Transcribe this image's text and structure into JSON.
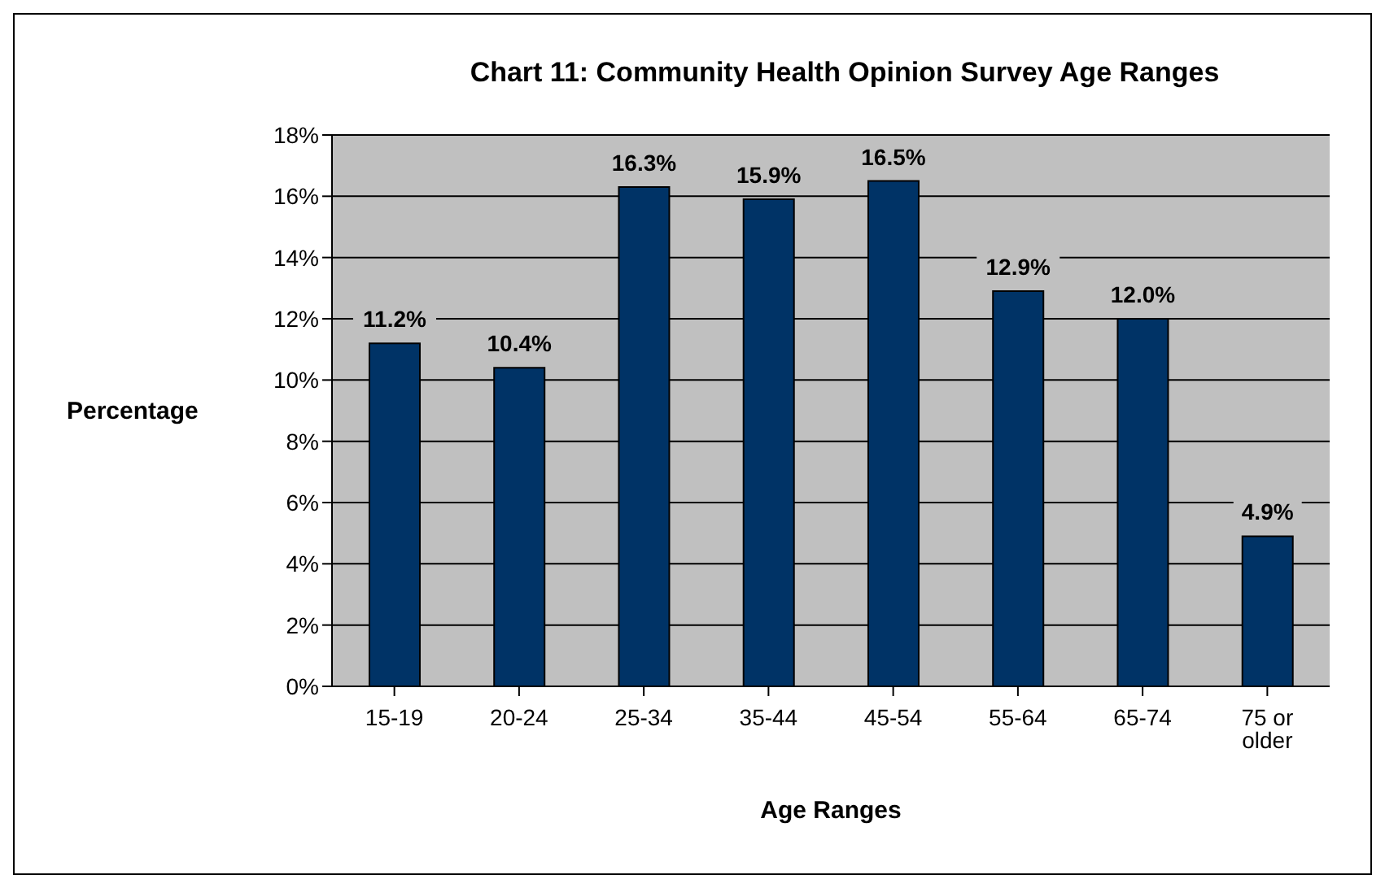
{
  "chart_data": {
    "type": "bar",
    "title": "Chart 11: Community Health Opinion Survey Age Ranges",
    "xlabel": "Age Ranges",
    "ylabel": "Percentage",
    "categories": [
      "15-19",
      "20-24",
      "25-34",
      "35-44",
      "45-54",
      "55-64",
      "65-74",
      "75 or older"
    ],
    "values": [
      11.2,
      10.4,
      16.3,
      15.9,
      16.5,
      12.9,
      12.0,
      4.9
    ],
    "value_labels": [
      "11.2%",
      "10.4%",
      "16.3%",
      "15.9%",
      "16.5%",
      "12.9%",
      "12.0%",
      "4.9%"
    ],
    "color": "#003366",
    "ylim": [
      0,
      18
    ],
    "yticks": [
      {
        "value": 0,
        "label": "0%"
      },
      {
        "value": 2,
        "label": "2%"
      },
      {
        "value": 4,
        "label": "4%"
      },
      {
        "value": 6,
        "label": "6%"
      },
      {
        "value": 8,
        "label": "8%"
      },
      {
        "value": 10,
        "label": "10%"
      },
      {
        "value": 12,
        "label": "12%"
      },
      {
        "value": 14,
        "label": "14%"
      },
      {
        "value": 16,
        "label": "16%"
      },
      {
        "value": 18,
        "label": "18%"
      }
    ],
    "grid": "y"
  }
}
